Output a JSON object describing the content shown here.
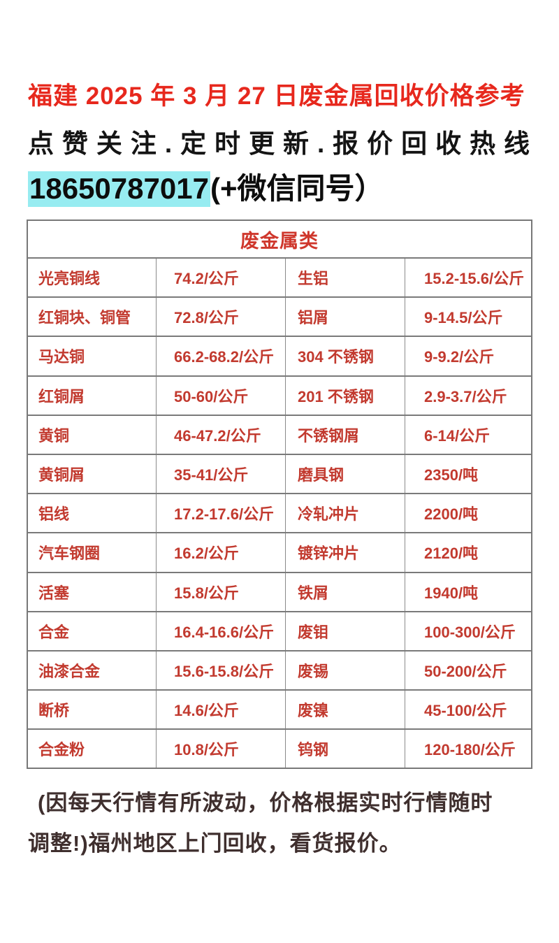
{
  "page": {
    "title": "福建 2025 年 3 月 27 日废金属回收价格参考",
    "subtitle": "点赞关注.定时更新.报价回收热线",
    "phone": "18650787017",
    "phone_suffix": "(+微信同号）"
  },
  "table": {
    "header": "废金属类",
    "rows": [
      [
        "光亮铜线",
        "74.2/公斤",
        "生铝",
        "15.2-15.6/公斤"
      ],
      [
        "红铜块、铜管",
        "72.8/公斤",
        "铝屑",
        "9-14.5/公斤"
      ],
      [
        "马达铜",
        "66.2-68.2/公斤",
        "304 不锈钢",
        "9-9.2/公斤"
      ],
      [
        "红铜屑",
        "50-60/公斤",
        "201 不锈钢",
        "2.9-3.7/公斤"
      ],
      [
        "黄铜",
        "46-47.2/公斤",
        "不锈钢屑",
        "6-14/公斤"
      ],
      [
        "黄铜屑",
        "35-41/公斤",
        "磨具钢",
        "2350/吨"
      ],
      [
        "铝线",
        "17.2-17.6/公斤",
        "冷轧冲片",
        "2200/吨"
      ],
      [
        "汽车钢圈",
        "16.2/公斤",
        "镀锌冲片",
        "2120/吨"
      ],
      [
        "活塞",
        "15.8/公斤",
        "铁屑",
        "1940/吨"
      ],
      [
        "合金",
        "16.4-16.6/公斤",
        "废钼",
        "100-300/公斤"
      ],
      [
        "油漆合金",
        "15.6-15.8/公斤",
        "废锡",
        "50-200/公斤"
      ],
      [
        "断桥",
        "14.6/公斤",
        "废镍",
        "45-100/公斤"
      ],
      [
        "合金粉",
        "10.8/公斤",
        "钨钢",
        "120-180/公斤"
      ]
    ]
  },
  "footer": {
    "line1": "(因每天行情有所波动，价格根据实时行情随时",
    "line2": "调整!)福州地区上门回收，看货报价。"
  },
  "colors": {
    "title_red": "#e7281d",
    "table_red": "#c23a2f",
    "header_red": "#cf372c",
    "highlight_cyan": "#97ecf1",
    "footer_brown": "#3f2f2e",
    "grid_gray": "#7a7a7a"
  }
}
